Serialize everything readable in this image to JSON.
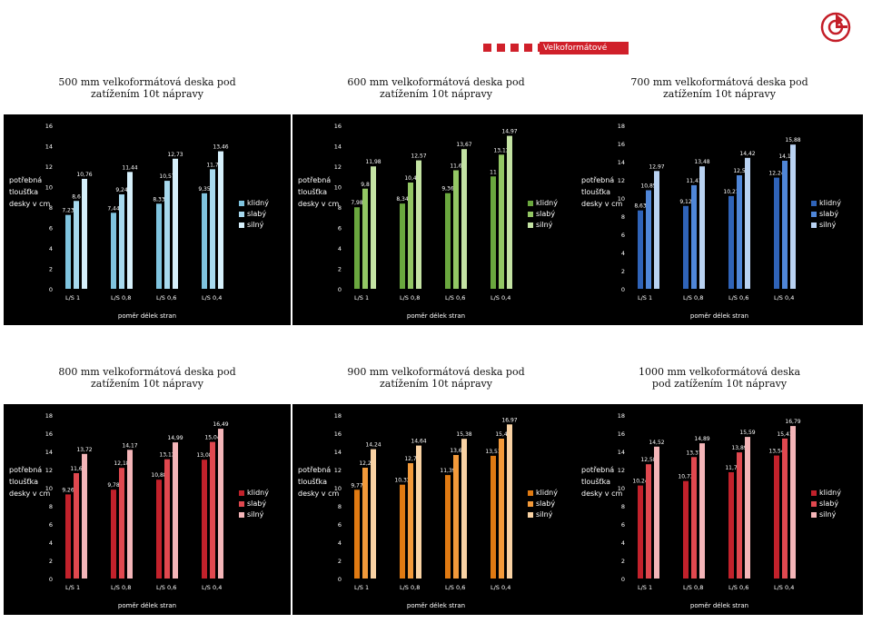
{
  "header": {
    "tag": "Velkoformátové desky"
  },
  "ylabel_lines": [
    "potřebná",
    "tloušťka",
    "desky v cm"
  ],
  "xlabel": "poměr délek stran",
  "legend": [
    "klidný",
    "slabý",
    "silný"
  ],
  "chart_data": [
    {
      "type": "bar",
      "title": "500 mm velkoformátová deska pod zatížením 10t nápravy",
      "categories": [
        "L/S   1",
        "L/S   0,8",
        "L/S   0,6",
        "L/S   0,4"
      ],
      "ylim": [
        0,
        16
      ],
      "yticks": [
        0,
        2,
        4,
        6,
        8,
        10,
        12,
        14,
        16
      ],
      "series": [
        {
          "name": "klidný",
          "values": [
            7.23,
            7.44,
            8.33,
            9.35
          ],
          "labels": [
            "7,23",
            "7,44",
            "8,33",
            "9,35"
          ]
        },
        {
          "name": "slabý",
          "values": [
            8.6,
            9.24,
            10.57,
            11.7
          ],
          "labels": [
            "8,6",
            "9,24",
            "10,57",
            "11,7"
          ]
        },
        {
          "name": "silný",
          "values": [
            10.76,
            11.44,
            12.73,
            13.46
          ],
          "labels": [
            "10,76",
            "11,44",
            "12,73",
            "13,46"
          ]
        }
      ],
      "colors": [
        "#7fc4df",
        "#a7d9ee",
        "#d6f0fb"
      ]
    },
    {
      "type": "bar",
      "title": "600 mm velkoformátová deska pod zatížením 10t nápravy",
      "categories": [
        "L/S   1",
        "L/S   0,8",
        "L/S   0,6",
        "L/S   0,4"
      ],
      "ylim": [
        0,
        16
      ],
      "yticks": [
        0,
        2,
        4,
        6,
        8,
        10,
        12,
        14,
        16
      ],
      "series": [
        {
          "name": "klidný",
          "values": [
            7.98,
            8.34,
            9.36,
            11.0
          ],
          "labels": [
            "7,98",
            "8,34",
            "9,36",
            "11"
          ]
        },
        {
          "name": "slabý",
          "values": [
            9.8,
            10.4,
            11.6,
            13.13
          ],
          "labels": [
            "9,8",
            "10,4",
            "11,6",
            "13,13"
          ]
        },
        {
          "name": "silný",
          "values": [
            11.98,
            12.57,
            13.67,
            14.97
          ],
          "labels": [
            "11,98",
            "12,57",
            "13,67",
            "14,97"
          ]
        }
      ],
      "colors": [
        "#6aa73e",
        "#93c764",
        "#c4e3a3"
      ]
    },
    {
      "type": "bar",
      "title": "700 mm velkoformátová deska pod zatížením 10t nápravy",
      "categories": [
        "L/S   1",
        "L/S   0,8",
        "L/S   0,6",
        "L/S   0,4"
      ],
      "ylim": [
        0,
        18
      ],
      "yticks": [
        0,
        2,
        4,
        6,
        8,
        10,
        12,
        14,
        16,
        18
      ],
      "series": [
        {
          "name": "klidný",
          "values": [
            8.63,
            9.12,
            10.21,
            12.24
          ],
          "labels": [
            "8,63",
            "9,12",
            "10,21",
            "12,24"
          ]
        },
        {
          "name": "slabý",
          "values": [
            10.85,
            11.41,
            12.5,
            14.1
          ],
          "labels": [
            "10,85",
            "11,41",
            "12,5",
            "14,1"
          ]
        },
        {
          "name": "silný",
          "values": [
            12.97,
            13.48,
            14.42,
            15.88
          ],
          "labels": [
            "12,97",
            "13,48",
            "14,42",
            "15,88"
          ]
        }
      ],
      "colors": [
        "#2f63b8",
        "#4f86d8",
        "#b9d2f2"
      ]
    },
    {
      "type": "bar",
      "title": "800 mm velkoformátová deska pod zatížením 10t nápravy",
      "categories": [
        "L/S   1",
        "L/S   0,8",
        "L/S   0,6",
        "L/S   0,4"
      ],
      "ylim": [
        0,
        18
      ],
      "yticks": [
        0,
        2,
        4,
        6,
        8,
        10,
        12,
        14,
        16,
        18
      ],
      "series": [
        {
          "name": "klidný",
          "values": [
            9.26,
            9.78,
            10.88,
            13.08
          ],
          "labels": [
            "9,26",
            "9,78",
            "10,88",
            "13,08"
          ]
        },
        {
          "name": "slabý",
          "values": [
            11.6,
            12.18,
            13.13,
            15.04
          ],
          "labels": [
            "11,6",
            "12,18",
            "13,13",
            "15,04"
          ]
        },
        {
          "name": "silný",
          "values": [
            13.72,
            14.17,
            14.99,
            16.49
          ],
          "labels": [
            "13,72",
            "14,17",
            "14,99",
            "16,49"
          ]
        }
      ],
      "colors": [
        "#c2212b",
        "#e0484f",
        "#f4b5b8"
      ]
    },
    {
      "type": "bar",
      "title": "900 mm velkoformátová deska pod zatížením 10t nápravy",
      "categories": [
        "L/S   1",
        "L/S   0,8",
        "L/S   0,6",
        "L/S   0,4"
      ],
      "ylim": [
        0,
        18
      ],
      "yticks": [
        0,
        2,
        4,
        6,
        8,
        10,
        12,
        14,
        16,
        18
      ],
      "series": [
        {
          "name": "klidný",
          "values": [
            9.77,
            10.33,
            11.39,
            13.51
          ],
          "labels": [
            "9,77",
            "10,33",
            "11,39",
            "13,51"
          ]
        },
        {
          "name": "slabý",
          "values": [
            12.2,
            12.7,
            13.6,
            15.4
          ],
          "labels": [
            "12,2",
            "12,7",
            "13,6",
            "15,4"
          ]
        },
        {
          "name": "silný",
          "values": [
            14.24,
            14.64,
            15.38,
            16.97
          ],
          "labels": [
            "14,24",
            "14,64",
            "15,38",
            "16,97"
          ]
        }
      ],
      "colors": [
        "#e07a12",
        "#f39a3a",
        "#f9d2a3"
      ]
    },
    {
      "type": "bar",
      "title": "1000 mm velkoformátová deska pod zatížením 10t nápravy",
      "categories": [
        "L/S   1",
        "L/S   0,8",
        "L/S   0,6",
        "L/S   0,4"
      ],
      "ylim": [
        0,
        18
      ],
      "yticks": [
        0,
        2,
        4,
        6,
        8,
        10,
        12,
        14,
        16,
        18
      ],
      "series": [
        {
          "name": "klidný",
          "values": [
            10.24,
            10.73,
            11.7,
            13.54
          ],
          "labels": [
            "10,24",
            "10,73",
            "11,7",
            "13,54"
          ]
        },
        {
          "name": "slabý",
          "values": [
            12.58,
            13.37,
            13.89,
            15.41
          ],
          "labels": [
            "12,58",
            "13,37",
            "13,89",
            "15,41"
          ]
        },
        {
          "name": "silný",
          "values": [
            14.52,
            14.89,
            15.59,
            16.79
          ],
          "labels": [
            "14,52",
            "14,89",
            "15,59",
            "16,79"
          ]
        }
      ],
      "colors": [
        "#c2212b",
        "#e0484f",
        "#f4b5b8"
      ]
    }
  ]
}
